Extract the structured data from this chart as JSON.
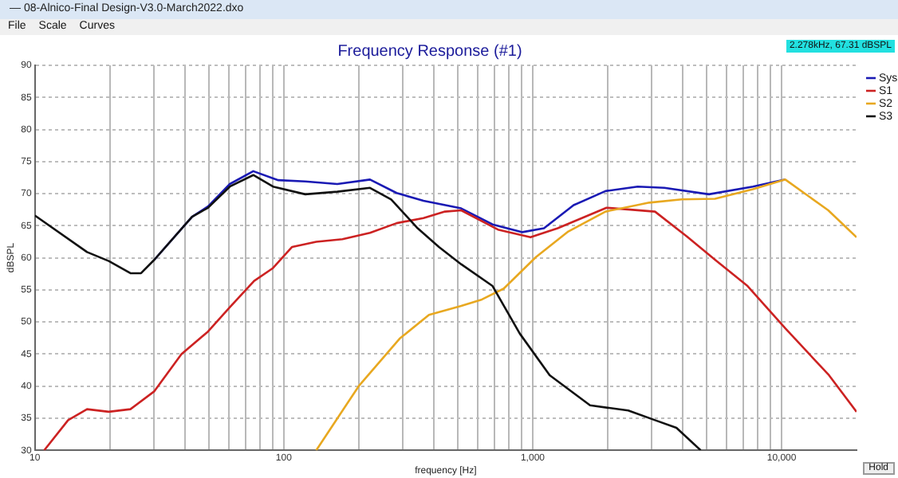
{
  "chart_data": {
    "type": "line",
    "title": "Frequency Response (#1)",
    "xlabel": "frequency [Hz]",
    "ylabel": "dBSPL",
    "log": "x",
    "grid": true,
    "legend": "top right",
    "line_style": "solid",
    "marker": "none",
    "xlim": [
      10,
      20000
    ],
    "xticks": [
      {
        "value": 10,
        "label": "10"
      },
      {
        "value": 20,
        "label": null
      },
      {
        "value": 30,
        "label": null
      },
      {
        "value": 40,
        "label": null
      },
      {
        "value": 50,
        "label": null
      },
      {
        "value": 60,
        "label": null
      },
      {
        "value": 70,
        "label": null
      },
      {
        "value": 80,
        "label": null
      },
      {
        "value": 90,
        "label": null
      },
      {
        "value": 100,
        "label": "100"
      },
      {
        "value": 200,
        "label": null
      },
      {
        "value": 300,
        "label": null
      },
      {
        "value": 400,
        "label": null
      },
      {
        "value": 500,
        "label": null
      },
      {
        "value": 600,
        "label": null
      },
      {
        "value": 700,
        "label": null
      },
      {
        "value": 800,
        "label": null
      },
      {
        "value": 900,
        "label": null
      },
      {
        "value": 1000,
        "label": "1,000"
      },
      {
        "value": 2000,
        "label": null
      },
      {
        "value": 3000,
        "label": null
      },
      {
        "value": 4000,
        "label": null
      },
      {
        "value": 5000,
        "label": null
      },
      {
        "value": 6000,
        "label": null
      },
      {
        "value": 7000,
        "label": null
      },
      {
        "value": 8000,
        "label": null
      },
      {
        "value": 9000,
        "label": null
      },
      {
        "value": 10000,
        "label": "10,000"
      }
    ],
    "ylim": [
      30,
      90
    ],
    "yticks": [
      30,
      35,
      40,
      45,
      50,
      55,
      60,
      65,
      70,
      75,
      80,
      85,
      90
    ],
    "annotations": [
      "— 08-Alnico-Final Design-V3.0-March2022.dxo",
      "File",
      "Scale",
      "Curves",
      "2.278kHz, 67.31 dBSPL",
      "Hold"
    ],
    "series": [
      {
        "name": "Sys",
        "color": "#1a1ab4",
        "x": [
          30.2,
          42.8,
          49.6,
          60.7,
          75.4,
          95,
          122,
          164,
          222,
          284,
          364,
          516,
          690,
          909,
          1110,
          1460,
          1960,
          2640,
          3380,
          5100,
          7670,
          10350
        ],
        "values": [
          59.7,
          66.4,
          68.0,
          71.5,
          73.5,
          72.1,
          71.9,
          71.5,
          72.2,
          70.1,
          68.9,
          67.7,
          65.2,
          64.0,
          64.6,
          68.2,
          70.4,
          71.1,
          70.9,
          69.9,
          71.1,
          72.2
        ]
      },
      {
        "name": "S1",
        "color": "#cc2222",
        "x": [
          10.9,
          13.6,
          16.2,
          19.8,
          24.2,
          30.2,
          38.8,
          49.6,
          60.7,
          76,
          90.5,
          108,
          135,
          172,
          222,
          284,
          364,
          444,
          516,
          725,
          980,
          1260,
          1980,
          3100,
          4170,
          5400,
          7300,
          10350,
          15500,
          20000
        ],
        "values": [
          30,
          34.7,
          36.4,
          36.0,
          36.4,
          39.2,
          45.0,
          48.5,
          52.3,
          56.4,
          58.4,
          61.7,
          62.5,
          62.9,
          63.9,
          65.4,
          66.2,
          67.2,
          67.4,
          64.4,
          63.2,
          64.6,
          67.8,
          67.2,
          63.3,
          59.7,
          55.6,
          49.0,
          41.7,
          36.0
        ]
      },
      {
        "name": "S2",
        "color": "#e8a820",
        "x": [
          135,
          200,
          292,
          383,
          516,
          625,
          765,
          1030,
          1390,
          1960,
          2940,
          3970,
          5400,
          7670,
          10350,
          15400,
          20000
        ],
        "values": [
          30,
          40.0,
          47.4,
          51.1,
          52.5,
          53.5,
          55.2,
          60.1,
          64.1,
          67.2,
          68.6,
          69.1,
          69.2,
          70.7,
          72.2,
          67.4,
          63.2
        ]
      },
      {
        "name": "S3",
        "color": "#111111",
        "x": [
          10,
          16.2,
          19.8,
          24.2,
          26.7,
          30.2,
          42.8,
          49.6,
          60.7,
          75.4,
          90.5,
          122,
          164,
          222,
          270,
          345,
          420,
          516,
          690,
          887,
          1170,
          1700,
          2420,
          3100,
          3780,
          4730
        ],
        "values": [
          66.6,
          60.9,
          59.5,
          57.6,
          57.6,
          59.7,
          66.4,
          67.8,
          71.1,
          72.9,
          71.1,
          69.9,
          70.3,
          70.9,
          69.1,
          64.6,
          61.7,
          59.0,
          55.6,
          48.2,
          41.7,
          37.0,
          36.2,
          34.7,
          33.5,
          30.0
        ]
      }
    ]
  }
}
